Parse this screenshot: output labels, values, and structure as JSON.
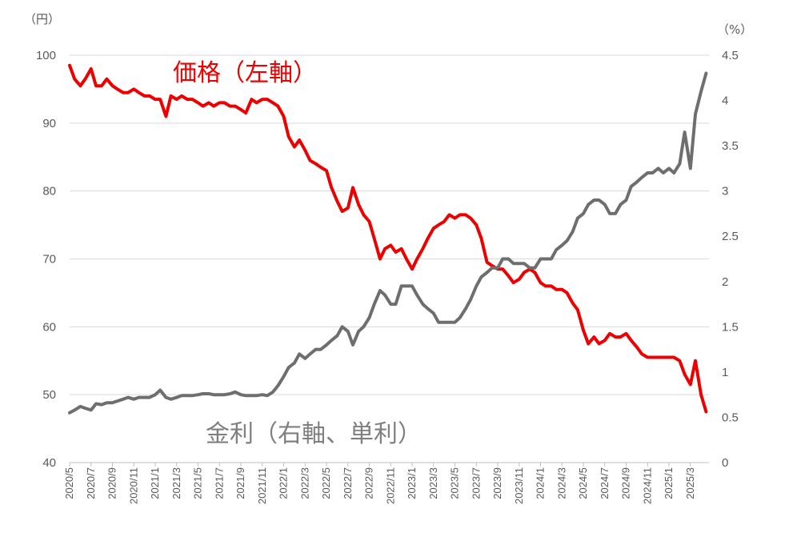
{
  "chart_data": {
    "type": "line",
    "left_axis": {
      "unit_label": "（円）",
      "ylim": [
        40,
        100
      ],
      "ticks": [
        "40",
        "50",
        "60",
        "70",
        "80",
        "90",
        "100"
      ]
    },
    "right_axis": {
      "unit_label": "（%）",
      "ylim": [
        0,
        4.5
      ],
      "ticks": [
        "0",
        "0.5",
        "1",
        "1.5",
        "2",
        "2.5",
        "3",
        "3.5",
        "4",
        "4.5"
      ]
    },
    "x_ticks": [
      "2020/5",
      "2020/7",
      "2020/9",
      "2020/11",
      "2021/1",
      "2021/3",
      "2021/5",
      "2021/7",
      "2021/9",
      "2021/11",
      "2022/1",
      "2022/3",
      "2022/5",
      "2022/7",
      "2022/9",
      "2022/11",
      "2023/1",
      "2023/3",
      "2023/5",
      "2023/7",
      "2023/9",
      "2023/11",
      "2024/1",
      "2024/3",
      "2024/5",
      "2024/7",
      "2024/9",
      "2024/11",
      "2025/1",
      "2025/3"
    ],
    "grid": "horizontal",
    "series": [
      {
        "name": "価格（左軸）",
        "axis": "left",
        "color": "#ee0000",
        "x": [
          "2020/5/1",
          "2020/5/15",
          "2020/6/1",
          "2020/6/15",
          "2020/7/1",
          "2020/7/15",
          "2020/8/1",
          "2020/8/15",
          "2020/9/1",
          "2020/9/15",
          "2020/10/1",
          "2020/10/15",
          "2020/11/1",
          "2020/11/15",
          "2020/12/1",
          "2020/12/15",
          "2021/1/1",
          "2021/1/15",
          "2021/2/1",
          "2021/2/15",
          "2021/3/1",
          "2021/3/15",
          "2021/4/1",
          "2021/4/15",
          "2021/5/1",
          "2021/5/15",
          "2021/6/1",
          "2021/6/15",
          "2021/7/1",
          "2021/7/15",
          "2021/8/1",
          "2021/8/15",
          "2021/9/1",
          "2021/9/15",
          "2021/10/1",
          "2021/10/15",
          "2021/11/1",
          "2021/11/15",
          "2021/12/1",
          "2021/12/15",
          "2022/1/1",
          "2022/1/15",
          "2022/2/1",
          "2022/2/15",
          "2022/3/1",
          "2022/3/15",
          "2022/4/1",
          "2022/4/15",
          "2022/5/1",
          "2022/5/15",
          "2022/6/1",
          "2022/6/15",
          "2022/7/1",
          "2022/7/15",
          "2022/8/1",
          "2022/8/15",
          "2022/9/1",
          "2022/9/15",
          "2022/10/1",
          "2022/10/15",
          "2022/11/1",
          "2022/11/15",
          "2022/12/1",
          "2022/12/15",
          "2023/1/1",
          "2023/1/15",
          "2023/2/1",
          "2023/2/15",
          "2023/3/1",
          "2023/3/15",
          "2023/4/1",
          "2023/4/15",
          "2023/5/1",
          "2023/5/15",
          "2023/6/1",
          "2023/6/15",
          "2023/7/1",
          "2023/7/15",
          "2023/8/1",
          "2023/8/15",
          "2023/9/1",
          "2023/9/15",
          "2023/10/1",
          "2023/10/15",
          "2023/11/1",
          "2023/11/15",
          "2023/12/1",
          "2023/12/15",
          "2024/1/1",
          "2024/1/15",
          "2024/2/1",
          "2024/2/15",
          "2024/3/1",
          "2024/3/15",
          "2024/4/1",
          "2024/4/15",
          "2024/5/1",
          "2024/5/15",
          "2024/6/1",
          "2024/6/15",
          "2024/7/1",
          "2024/7/15",
          "2024/8/1",
          "2024/8/15",
          "2024/9/1",
          "2024/9/15",
          "2024/10/1",
          "2024/10/15",
          "2024/11/1",
          "2024/11/15",
          "2024/12/1",
          "2024/12/15",
          "2025/1/1",
          "2025/1/15",
          "2025/2/1",
          "2025/2/15",
          "2025/3/1",
          "2025/3/15",
          "2025/4/1",
          "2025/4/15"
        ],
        "values": [
          98.5,
          96.5,
          95.5,
          96.5,
          98.0,
          95.5,
          95.5,
          96.5,
          95.5,
          95.0,
          94.5,
          94.5,
          95.0,
          94.5,
          94.0,
          94.0,
          93.5,
          93.5,
          91.0,
          94.0,
          93.5,
          94.0,
          93.5,
          93.5,
          93.0,
          92.5,
          93.0,
          92.5,
          93.0,
          93.0,
          92.5,
          92.5,
          92.0,
          91.5,
          93.5,
          93.0,
          93.5,
          93.5,
          93.0,
          92.5,
          91.0,
          88.0,
          86.5,
          87.5,
          86.0,
          84.5,
          84.0,
          83.5,
          83.0,
          80.5,
          78.5,
          77.0,
          77.5,
          80.5,
          78.0,
          76.5,
          75.5,
          73.0,
          70.0,
          71.5,
          72.0,
          71.0,
          71.5,
          70.0,
          68.5,
          70.0,
          71.5,
          73.0,
          74.5,
          75.0,
          75.5,
          76.5,
          76.0,
          76.5,
          76.5,
          76.0,
          75.0,
          73.0,
          69.5,
          69.0,
          68.5,
          68.5,
          67.5,
          66.5,
          67.0,
          68.0,
          68.5,
          68.0,
          66.5,
          66.0,
          66.0,
          65.5,
          65.5,
          65.0,
          63.5,
          62.5,
          59.5,
          57.5,
          58.5,
          57.5,
          58.0,
          59.0,
          58.5,
          58.5,
          59.0,
          58.0,
          57.0,
          56.0,
          55.5,
          55.5,
          55.5,
          55.5,
          55.5,
          55.5,
          55.0,
          53.0,
          51.5,
          55.0,
          50.0,
          47.5
        ]
      },
      {
        "name": "金利（右軸、単利）",
        "axis": "right",
        "color": "#6e6e6e",
        "x": [
          "2020/5/1",
          "2020/5/15",
          "2020/6/1",
          "2020/6/15",
          "2020/7/1",
          "2020/7/15",
          "2020/8/1",
          "2020/8/15",
          "2020/9/1",
          "2020/9/15",
          "2020/10/1",
          "2020/10/15",
          "2020/11/1",
          "2020/11/15",
          "2020/12/1",
          "2020/12/15",
          "2021/1/1",
          "2021/1/15",
          "2021/2/1",
          "2021/2/15",
          "2021/3/1",
          "2021/3/15",
          "2021/4/1",
          "2021/4/15",
          "2021/5/1",
          "2021/5/15",
          "2021/6/1",
          "2021/6/15",
          "2021/7/1",
          "2021/7/15",
          "2021/8/1",
          "2021/8/15",
          "2021/9/1",
          "2021/9/15",
          "2021/10/1",
          "2021/10/15",
          "2021/11/1",
          "2021/11/15",
          "2021/12/1",
          "2021/12/15",
          "2022/1/1",
          "2022/1/15",
          "2022/2/1",
          "2022/2/15",
          "2022/3/1",
          "2022/3/15",
          "2022/4/1",
          "2022/4/15",
          "2022/5/1",
          "2022/5/15",
          "2022/6/1",
          "2022/6/15",
          "2022/7/1",
          "2022/7/15",
          "2022/8/1",
          "2022/8/15",
          "2022/9/1",
          "2022/9/15",
          "2022/10/1",
          "2022/10/15",
          "2022/11/1",
          "2022/11/15",
          "2022/12/1",
          "2022/12/15",
          "2023/1/1",
          "2023/1/15",
          "2023/2/1",
          "2023/2/15",
          "2023/3/1",
          "2023/3/15",
          "2023/4/1",
          "2023/4/15",
          "2023/5/1",
          "2023/5/15",
          "2023/6/1",
          "2023/6/15",
          "2023/7/1",
          "2023/7/15",
          "2023/8/1",
          "2023/8/15",
          "2023/9/1",
          "2023/9/15",
          "2023/10/1",
          "2023/10/15",
          "2023/11/1",
          "2023/11/15",
          "2023/12/1",
          "2023/12/15",
          "2024/1/1",
          "2024/1/15",
          "2024/2/1",
          "2024/2/15",
          "2024/3/1",
          "2024/3/15",
          "2024/4/1",
          "2024/4/15",
          "2024/5/1",
          "2024/5/15",
          "2024/6/1",
          "2024/6/15",
          "2024/7/1",
          "2024/7/15",
          "2024/8/1",
          "2024/8/15",
          "2024/9/1",
          "2024/9/15",
          "2024/10/1",
          "2024/10/15",
          "2024/11/1",
          "2024/11/15",
          "2024/12/1",
          "2024/12/15",
          "2025/1/1",
          "2025/1/15",
          "2025/2/1",
          "2025/2/15",
          "2025/3/1",
          "2025/3/15",
          "2025/4/1",
          "2025/4/15"
        ],
        "values": [
          0.55,
          0.58,
          0.62,
          0.6,
          0.58,
          0.65,
          0.64,
          0.66,
          0.66,
          0.68,
          0.7,
          0.72,
          0.7,
          0.72,
          0.72,
          0.72,
          0.75,
          0.8,
          0.72,
          0.7,
          0.72,
          0.74,
          0.74,
          0.74,
          0.75,
          0.76,
          0.76,
          0.75,
          0.75,
          0.75,
          0.76,
          0.78,
          0.75,
          0.74,
          0.74,
          0.74,
          0.75,
          0.74,
          0.78,
          0.85,
          0.95,
          1.05,
          1.1,
          1.2,
          1.15,
          1.2,
          1.25,
          1.25,
          1.3,
          1.35,
          1.4,
          1.5,
          1.45,
          1.3,
          1.45,
          1.5,
          1.6,
          1.75,
          1.9,
          1.85,
          1.75,
          1.75,
          1.95,
          1.95,
          1.95,
          1.85,
          1.75,
          1.7,
          1.65,
          1.55,
          1.55,
          1.55,
          1.55,
          1.6,
          1.7,
          1.8,
          1.95,
          2.05,
          2.1,
          2.15,
          2.15,
          2.25,
          2.25,
          2.2,
          2.2,
          2.2,
          2.15,
          2.15,
          2.25,
          2.25,
          2.25,
          2.35,
          2.4,
          2.45,
          2.55,
          2.7,
          2.75,
          2.85,
          2.9,
          2.9,
          2.85,
          2.75,
          2.75,
          2.85,
          2.9,
          3.05,
          3.1,
          3.15,
          3.2,
          3.2,
          3.25,
          3.2,
          3.25,
          3.2,
          3.3,
          3.65,
          3.25,
          3.85,
          4.1,
          4.3
        ]
      }
    ],
    "annotations": [
      {
        "text": "価格（左軸）",
        "color": "#ee0000"
      },
      {
        "text": "金利（右軸、単利）",
        "color": "#7f7f7f"
      }
    ]
  }
}
